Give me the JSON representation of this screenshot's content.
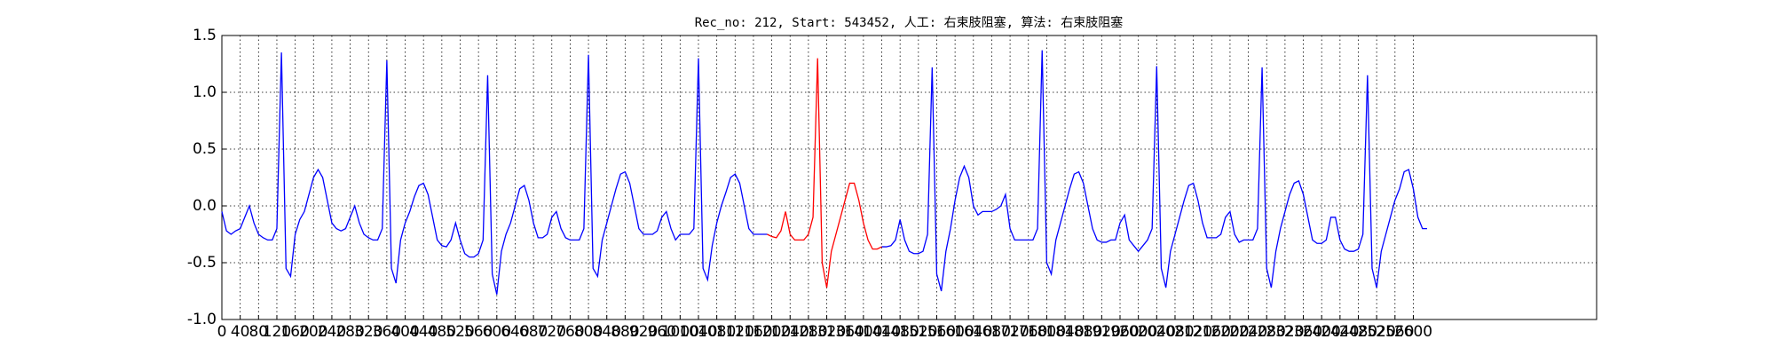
{
  "chart_data": {
    "type": "line",
    "title": "Rec_no: 212, Start: 543452, 人工: 右束肢阻塞, 算法: 右束肢阻塞",
    "xlim": [
      0,
      3000
    ],
    "ylim": [
      -1,
      1.5
    ],
    "xticks": [
      0,
      40,
      80,
      120,
      160,
      200,
      240,
      280,
      320,
      360,
      400,
      440,
      480,
      520,
      560,
      600,
      640,
      680,
      720,
      760,
      800,
      840,
      880,
      920,
      960,
      1000,
      1040,
      1080,
      1120,
      1160,
      1200,
      1240,
      1280,
      1320,
      1360,
      1400,
      1440,
      1480,
      1520,
      1560,
      1600,
      1640,
      1680,
      1720,
      1760,
      1800,
      1840,
      1880,
      1920,
      1960,
      2000,
      2040,
      2080,
      2120,
      2160,
      2200,
      2240,
      2280,
      2320,
      2360,
      2400,
      2440,
      2480,
      2520,
      2560,
      2600
    ],
    "yticks": [
      {
        "value": -1,
        "label": "-1.0"
      },
      -0.5,
      {
        "value": 0,
        "label": "0.0"
      },
      0.5,
      {
        "value": 1,
        "label": "1.0"
      },
      1.5
    ],
    "grid": true,
    "series": [
      {
        "color": "#0000ff",
        "x": [
          0,
          10,
          20,
          30,
          40,
          50,
          60,
          70,
          80,
          90,
          100,
          110,
          120,
          130,
          140,
          150,
          160,
          170,
          180,
          190,
          200,
          210,
          220,
          230,
          240,
          250,
          260,
          270,
          280,
          290,
          300,
          310,
          320,
          330,
          340,
          350,
          360,
          370,
          380,
          390,
          400,
          410,
          420,
          430,
          440,
          450,
          460,
          470,
          480,
          490,
          500,
          510,
          520,
          530,
          540,
          550,
          560,
          570,
          580,
          590,
          600,
          610,
          620,
          630,
          640,
          650,
          660,
          670,
          680,
          690,
          700,
          710,
          720,
          730,
          740,
          750,
          760,
          770,
          780,
          790,
          800,
          810,
          820,
          830,
          840,
          850,
          860,
          870,
          880,
          890,
          900,
          910,
          920,
          930,
          940,
          950,
          960,
          970,
          980,
          990,
          1000,
          1010,
          1020,
          1030,
          1040,
          1050,
          1060,
          1070,
          1080,
          1090,
          1100,
          1110,
          1120,
          1130,
          1140,
          1150,
          1160,
          1170,
          1180,
          1190
        ],
        "values": [
          -0.05,
          -0.22,
          -0.25,
          -0.22,
          -0.2,
          -0.1,
          0.0,
          -0.15,
          -0.25,
          -0.28,
          -0.3,
          -0.3,
          -0.2,
          1.35,
          -0.55,
          -0.62,
          -0.25,
          -0.12,
          -0.05,
          0.1,
          0.25,
          0.32,
          0.25,
          0.05,
          -0.15,
          -0.2,
          -0.22,
          -0.2,
          -0.1,
          0.0,
          -0.15,
          -0.25,
          -0.28,
          -0.3,
          -0.3,
          -0.2,
          1.28,
          -0.55,
          -0.68,
          -0.3,
          -0.15,
          -0.05,
          0.08,
          0.18,
          0.2,
          0.1,
          -0.1,
          -0.3,
          -0.35,
          -0.36,
          -0.3,
          -0.15,
          -0.3,
          -0.42,
          -0.45,
          -0.45,
          -0.42,
          -0.3,
          1.15,
          -0.6,
          -0.78,
          -0.4,
          -0.25,
          -0.15,
          0.0,
          0.15,
          0.18,
          0.05,
          -0.15,
          -0.28,
          -0.28,
          -0.25,
          -0.1,
          -0.05,
          -0.2,
          -0.28,
          -0.3,
          -0.3,
          -0.3,
          -0.2,
          1.33,
          -0.55,
          -0.62,
          -0.3,
          -0.15,
          0.0,
          0.15,
          0.28,
          0.3,
          0.2,
          0.0,
          -0.2,
          -0.25,
          -0.25,
          -0.25,
          -0.22,
          -0.1,
          -0.05,
          -0.2,
          -0.3,
          -0.25,
          -0.25,
          -0.25,
          -0.2,
          1.3,
          -0.55,
          -0.65,
          -0.35,
          -0.15,
          0.0,
          0.12,
          0.25,
          0.28,
          0.2,
          0.0,
          -0.2,
          -0.25,
          -0.25,
          -0.25,
          -0.25
        ]
      },
      {
        "color": "#ff0000",
        "x": [
          1190,
          1200,
          1210,
          1220,
          1230,
          1240,
          1250,
          1260,
          1270,
          1280,
          1290,
          1300,
          1310,
          1320,
          1330,
          1340,
          1350,
          1360,
          1370,
          1380,
          1390,
          1400,
          1410,
          1420,
          1430,
          1440
        ],
        "values": [
          -0.25,
          -0.27,
          -0.28,
          -0.22,
          -0.05,
          -0.25,
          -0.3,
          -0.3,
          -0.3,
          -0.25,
          -0.1,
          1.3,
          -0.5,
          -0.72,
          -0.4,
          -0.25,
          -0.1,
          0.05,
          0.2,
          0.2,
          0.05,
          -0.15,
          -0.3,
          -0.38,
          -0.38,
          -0.36
        ]
      },
      {
        "color": "#0000ff",
        "x": [
          1440,
          1450,
          1460,
          1470,
          1480,
          1490,
          1500,
          1510,
          1520,
          1530,
          1540,
          1550,
          1560,
          1570,
          1580,
          1590,
          1600,
          1610,
          1620,
          1630,
          1640,
          1650,
          1660,
          1670,
          1680,
          1690,
          1700,
          1710,
          1720,
          1730,
          1740,
          1750,
          1760,
          1770,
          1780,
          1790,
          1800,
          1810,
          1820,
          1830,
          1840,
          1850,
          1860,
          1870,
          1880,
          1890,
          1900,
          1910,
          1920,
          1930,
          1940,
          1950,
          1960,
          1970,
          1980,
          1990,
          2000,
          2010,
          2020,
          2030,
          2040,
          2050,
          2060,
          2070,
          2080,
          2090,
          2100,
          2110,
          2120,
          2130,
          2140,
          2150,
          2160,
          2170,
          2180,
          2190,
          2200,
          2210,
          2220,
          2230,
          2240,
          2250,
          2260,
          2270,
          2280,
          2290,
          2300,
          2310,
          2320,
          2330,
          2340,
          2350,
          2360,
          2370,
          2380,
          2390,
          2400,
          2410,
          2420,
          2430,
          2440,
          2450,
          2460,
          2470,
          2480,
          2490,
          2500,
          2510,
          2520,
          2530,
          2540,
          2550,
          2560,
          2570,
          2580,
          2590,
          2600,
          2610,
          2620,
          2630
        ],
        "values": [
          -0.36,
          -0.36,
          -0.35,
          -0.3,
          -0.12,
          -0.3,
          -0.4,
          -0.42,
          -0.42,
          -0.4,
          -0.25,
          1.22,
          -0.6,
          -0.75,
          -0.4,
          -0.2,
          0.05,
          0.25,
          0.35,
          0.25,
          0.0,
          -0.08,
          -0.05,
          -0.05,
          -0.05,
          -0.03,
          0.0,
          0.1,
          -0.2,
          -0.3,
          -0.3,
          -0.3,
          -0.3,
          -0.3,
          -0.2,
          1.37,
          -0.5,
          -0.6,
          -0.3,
          -0.15,
          0.0,
          0.15,
          0.28,
          0.3,
          0.2,
          0.0,
          -0.2,
          -0.3,
          -0.32,
          -0.32,
          -0.3,
          -0.3,
          -0.15,
          -0.08,
          -0.3,
          -0.35,
          -0.4,
          -0.35,
          -0.3,
          -0.2,
          1.23,
          -0.55,
          -0.72,
          -0.4,
          -0.25,
          -0.1,
          0.05,
          0.18,
          0.2,
          0.05,
          -0.15,
          -0.28,
          -0.28,
          -0.28,
          -0.25,
          -0.1,
          -0.05,
          -0.25,
          -0.32,
          -0.3,
          -0.3,
          -0.3,
          -0.2,
          1.22,
          -0.55,
          -0.72,
          -0.4,
          -0.2,
          -0.05,
          0.1,
          0.2,
          0.22,
          0.1,
          -0.1,
          -0.3,
          -0.33,
          -0.33,
          -0.3,
          -0.1,
          -0.1,
          -0.3,
          -0.38,
          -0.4,
          -0.4,
          -0.38,
          -0.25,
          1.15,
          -0.55,
          -0.72,
          -0.4,
          -0.25,
          -0.1,
          0.05,
          0.15,
          0.3,
          0.32,
          0.15,
          -0.1,
          -0.2,
          -0.2
        ]
      }
    ]
  }
}
